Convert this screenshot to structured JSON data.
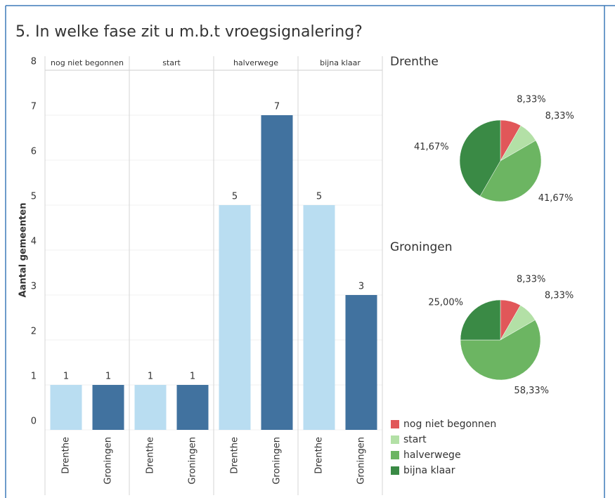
{
  "chart_data": [
    {
      "type": "bar",
      "title": "5. In welke fase zit u m.b.t vroegsignalering?",
      "y_label": "Aantal gemeenten",
      "categories": [
        "nog niet begonnen",
        "start",
        "halverwege",
        "bijna klaar"
      ],
      "series": [
        {
          "name": "Drenthe",
          "color": "#b9ddf1",
          "values": [
            1,
            1,
            5,
            5
          ]
        },
        {
          "name": "Groningen",
          "color": "#41729f",
          "values": [
            1,
            1,
            7,
            3
          ]
        }
      ],
      "ylim": [
        0,
        8
      ],
      "yticks": [
        0,
        1,
        2,
        3,
        4,
        5,
        6,
        7,
        8
      ],
      "grid": true
    },
    {
      "type": "pie",
      "title": "Drenthe",
      "categories": [
        "nog niet begonnen",
        "start",
        "halverwege",
        "bijna klaar"
      ],
      "colors": [
        "#e15759",
        "#b3e0a6",
        "#6cb562",
        "#3a8a45"
      ],
      "values": [
        8.33,
        8.33,
        41.67,
        41.67
      ],
      "value_labels": [
        "8,33%",
        "8,33%",
        "41,67%",
        "41,67%"
      ],
      "legend": "bottom"
    },
    {
      "type": "pie",
      "title": "Groningen",
      "categories": [
        "nog niet begonnen",
        "start",
        "halverwege",
        "bijna klaar"
      ],
      "colors": [
        "#e15759",
        "#b3e0a6",
        "#6cb562",
        "#3a8a45"
      ],
      "values": [
        8.33,
        8.33,
        58.33,
        25.0
      ],
      "value_labels": [
        "8,33%",
        "8,33%",
        "58,33%",
        "25,00%"
      ]
    }
  ]
}
